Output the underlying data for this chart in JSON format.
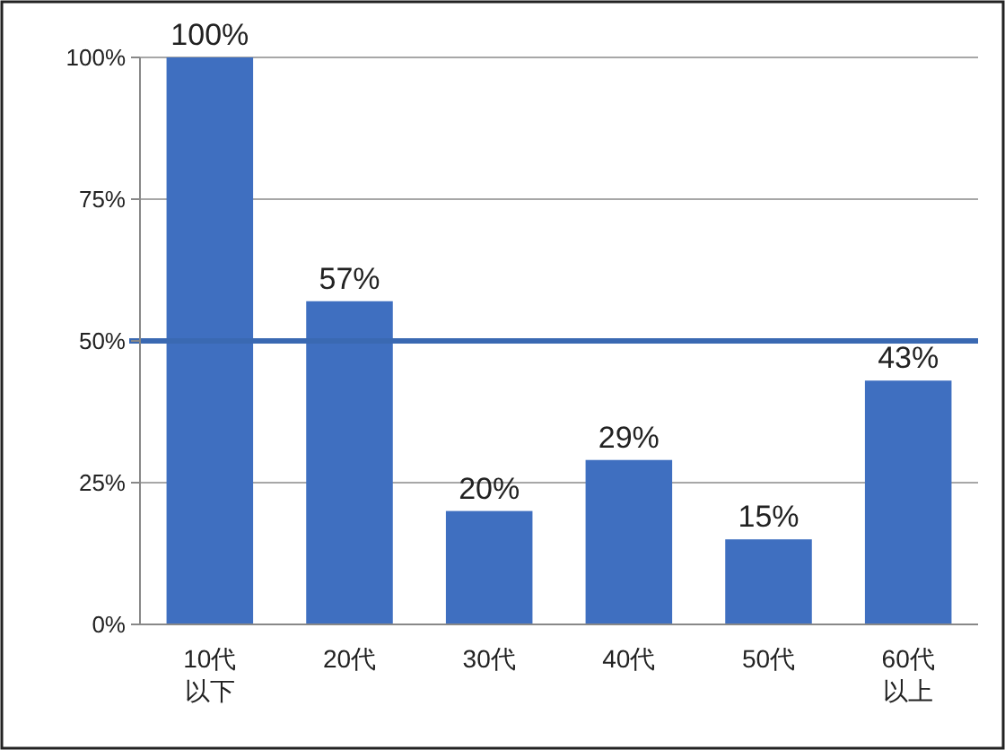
{
  "chart_data": {
    "type": "bar",
    "categories": [
      "10代以下",
      "20代",
      "30代",
      "40代",
      "50代",
      "60代以上"
    ],
    "values": [
      100,
      57,
      20,
      29,
      15,
      43
    ],
    "value_labels": [
      "100%",
      "57%",
      "20%",
      "29%",
      "15%",
      "43%"
    ],
    "color": "#3f6fc0",
    "ylim": [
      0,
      100
    ],
    "yticks": [
      {
        "value": 0,
        "label": "0%"
      },
      {
        "value": 25,
        "label": "25%"
      },
      {
        "value": 50,
        "label": "50%"
      },
      {
        "value": 75,
        "label": "75%"
      },
      {
        "value": 100,
        "label": "100%"
      }
    ],
    "grid": "y",
    "ref_lines": [
      {
        "axis": "y",
        "value": 50,
        "color": "#3a69b2"
      }
    ]
  }
}
